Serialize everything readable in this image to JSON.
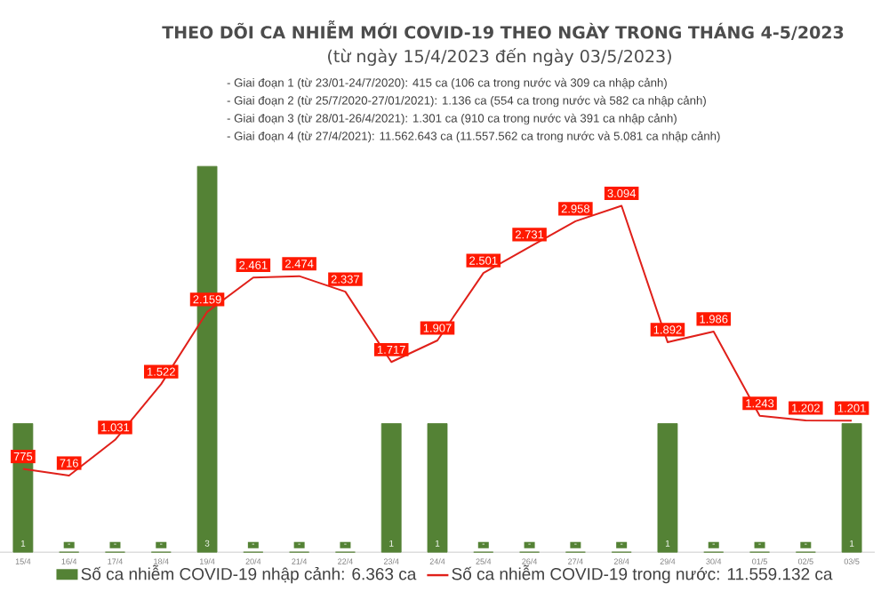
{
  "chart_data": {
    "type": "bar",
    "title": "THEO DÕI CA NHIỄM MỚI COVID-19 THEO NGÀY TRONG THÁNG 4-5/2023",
    "subtitle": "(từ ngày 15/4/2023 đến ngày 03/5/2023)",
    "annotations": [
      "- Giai đoạn 1 (từ 23/01-24/7/2020): 415 ca (106 ca trong nước và 309 ca nhập cảnh)",
      "- Giai đoạn 2 (từ 25/7/2020-27/01/2021): 1.136 ca (554 ca trong nước và 582 ca nhập cảnh)",
      "- Giai đoạn 3 (từ 28/01-26/4/2021): 1.301 ca (910 ca trong nước và 391 ca nhập cảnh)",
      "- Giai đoạn 4 (từ 27/4/2021): 11.562.643 ca (11.557.562 ca trong nước và 5.081 ca nhập cảnh)"
    ],
    "categories": [
      "15/4",
      "16/4",
      "17/4",
      "18/4",
      "19/4",
      "20/4",
      "21/4",
      "22/4",
      "23/4",
      "24/4",
      "25/4",
      "26/4",
      "27/4",
      "28/4",
      "29/4",
      "30/4",
      "01/5",
      "02/5",
      "03/5"
    ],
    "series": [
      {
        "name": "Số ca nhiễm COVID-19 nhập cảnh: 6.363 ca",
        "color": "#548235",
        "values": [
          1,
          0,
          0,
          0,
          3,
          0,
          0,
          0,
          1,
          1,
          0,
          0,
          0,
          0,
          1,
          0,
          0,
          0,
          1
        ],
        "value_labels": [
          "1",
          "-",
          "-",
          "-",
          "3",
          "-",
          "-",
          "-",
          "1",
          "1",
          "-",
          "-",
          "-",
          "-",
          "1",
          "-",
          "-",
          "-",
          "1"
        ]
      },
      {
        "name": "Số ca nhiễm COVID-19 trong nước: 11.559.132 ca",
        "type": "line",
        "axis": "y2",
        "color": "#e0201a",
        "values": [
          775,
          716,
          1031,
          1522,
          2159,
          2461,
          2474,
          2337,
          1717,
          1907,
          2501,
          2731,
          2958,
          3094,
          1892,
          1986,
          1243,
          1202,
          1201
        ],
        "value_labels": [
          "775",
          "716",
          "1.031",
          "1.522",
          "2.159",
          "2.461",
          "2.474",
          "2.337",
          "1.717",
          "1.907",
          "2.501",
          "2.731",
          "2.958",
          "3.094",
          "1.892",
          "1.986",
          "1.243",
          "1.202",
          "1.201"
        ]
      }
    ],
    "ylim": [
      0,
      3
    ],
    "y2lim": [
      0,
      3400
    ],
    "tick_labels": "x",
    "legend": "bottom"
  }
}
